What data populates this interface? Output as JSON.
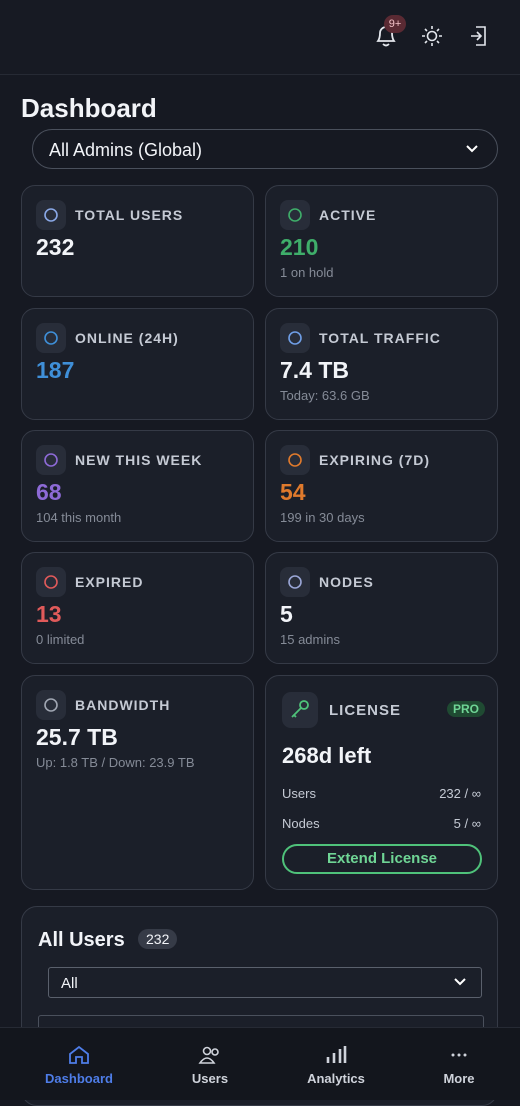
{
  "header": {
    "notification_badge": "9+"
  },
  "title": "Dashboard",
  "admin_select": "All Admins (Global)",
  "cards": [
    {
      "label": "TOTAL USERS",
      "value": "232",
      "color": "#f2f4f8"
    },
    {
      "label": "ACTIVE",
      "value": "210",
      "sub": "1 on hold",
      "color": "#3fae6a"
    },
    {
      "label": "ONLINE (24H)",
      "value": "187",
      "color": "#3f8fd8"
    },
    {
      "label": "TOTAL TRAFFIC",
      "value": "7.4 TB",
      "sub": "Today: 63.6 GB",
      "color": "#f2f4f8"
    },
    {
      "label": "NEW THIS WEEK",
      "value": "68",
      "sub": "104 this month",
      "color": "#8d6ad6"
    },
    {
      "label": "EXPIRING (7D)",
      "value": "54",
      "sub": "199 in 30 days",
      "color": "#e07a2c"
    },
    {
      "label": "EXPIRED",
      "value": "13",
      "sub": "0 limited",
      "color": "#e05a5a"
    },
    {
      "label": "NODES",
      "value": "5",
      "sub": "15 admins",
      "color": "#f2f4f8"
    },
    {
      "label": "BANDWIDTH",
      "value": "25.7 TB",
      "sub": "Up: 1.8 TB / Down: 23.9 TB",
      "color": "#f2f4f8"
    }
  ],
  "license": {
    "label": "LICENSE",
    "tier": "PRO",
    "remaining": "268d left",
    "rows": [
      [
        "Users",
        "232 / ∞"
      ],
      [
        "Nodes",
        "5 / ∞"
      ]
    ],
    "button": "Extend License"
  },
  "users_panel": {
    "title": "All Users",
    "count": "232",
    "filter": "All"
  },
  "nav": [
    "Dashboard",
    "Users",
    "Analytics",
    "More"
  ]
}
